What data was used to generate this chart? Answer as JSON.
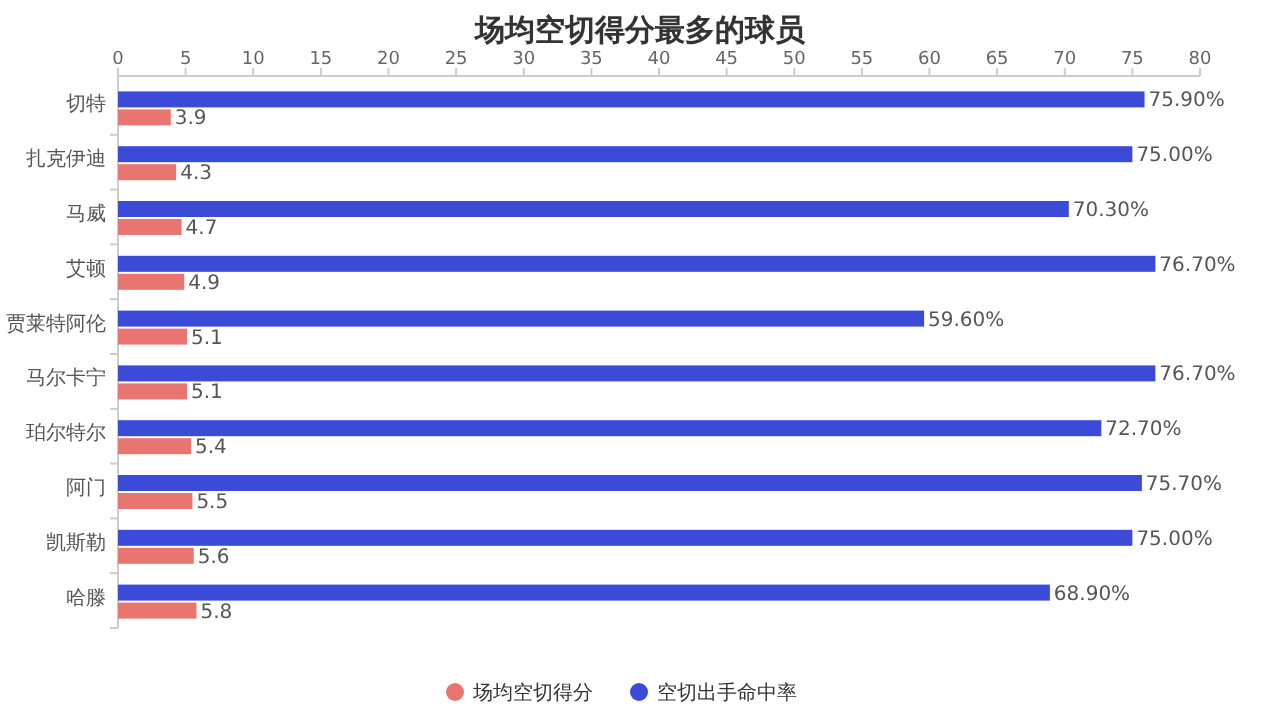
{
  "chart_data": {
    "type": "bar",
    "orientation": "horizontal",
    "title": "场均空切得分最多的球员",
    "categories": [
      "切特",
      "扎克伊迪",
      "马威",
      "艾顿",
      "贾莱特阿伦",
      "马尔卡宁",
      "珀尔特尔",
      "阿门",
      "凯斯勒",
      "哈滕"
    ],
    "series": [
      {
        "name": "场均空切得分",
        "color": "#e8756f",
        "values": [
          3.9,
          4.3,
          4.7,
          4.9,
          5.1,
          5.1,
          5.4,
          5.5,
          5.6,
          5.8
        ],
        "value_labels": [
          "3.9",
          "4.3",
          "4.7",
          "4.9",
          "5.1",
          "5.1",
          "5.4",
          "5.5",
          "5.6",
          "5.8"
        ]
      },
      {
        "name": "空切出手命中率",
        "color": "#3b4bd8",
        "values": [
          75.9,
          75.0,
          70.3,
          76.7,
          59.6,
          76.7,
          72.7,
          75.7,
          75.0,
          68.9
        ],
        "value_labels": [
          "75.90%",
          "75.00%",
          "70.30%",
          "76.70%",
          "59.60%",
          "76.70%",
          "72.70%",
          "75.70%",
          "75.00%",
          "68.90%"
        ]
      }
    ],
    "xlim": [
      0,
      80
    ],
    "xticks": [
      0,
      5,
      10,
      15,
      20,
      25,
      30,
      35,
      40,
      45,
      50,
      55,
      60,
      65,
      70,
      75,
      80
    ],
    "grid": false,
    "legend": "bottom"
  }
}
